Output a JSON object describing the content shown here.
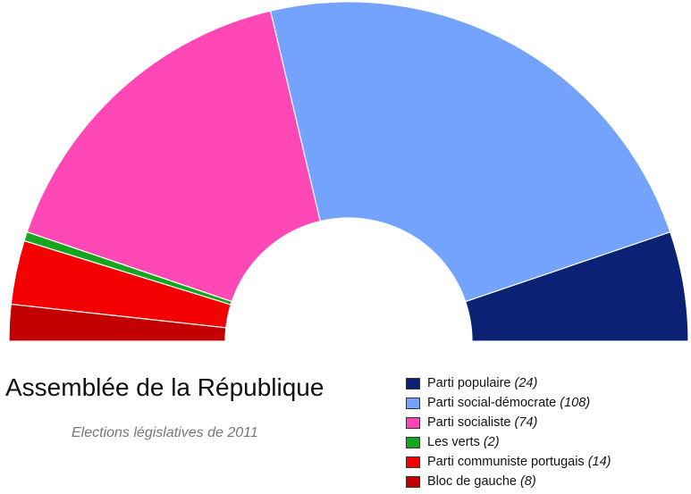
{
  "chart_data": {
    "type": "pie",
    "subtype": "parliament-hemicycle",
    "title": "Assemblée de la République",
    "subtitle": "Elections législatives de 2011",
    "unit": "seats",
    "total": 230,
    "legend_position": "bottom-right",
    "slices": [
      {
        "name": "Parti populaire",
        "value": 24,
        "seats_label": "(24)",
        "color": "#0b2173"
      },
      {
        "name": "Parti social-démocrate",
        "value": 108,
        "seats_label": "(108)",
        "color": "#73a3fc"
      },
      {
        "name": "Parti socialiste",
        "value": 74,
        "seats_label": "(74)",
        "color": "#ff48b6"
      },
      {
        "name": "Les verts",
        "value": 2,
        "seats_label": "(2)",
        "color": "#15a61e"
      },
      {
        "name": "Parti communiste portugais",
        "value": 14,
        "seats_label": "(14)",
        "color": "#f40000"
      },
      {
        "name": "Bloc de gauche",
        "value": 8,
        "seats_label": "(8)",
        "color": "#c30000"
      }
    ]
  }
}
